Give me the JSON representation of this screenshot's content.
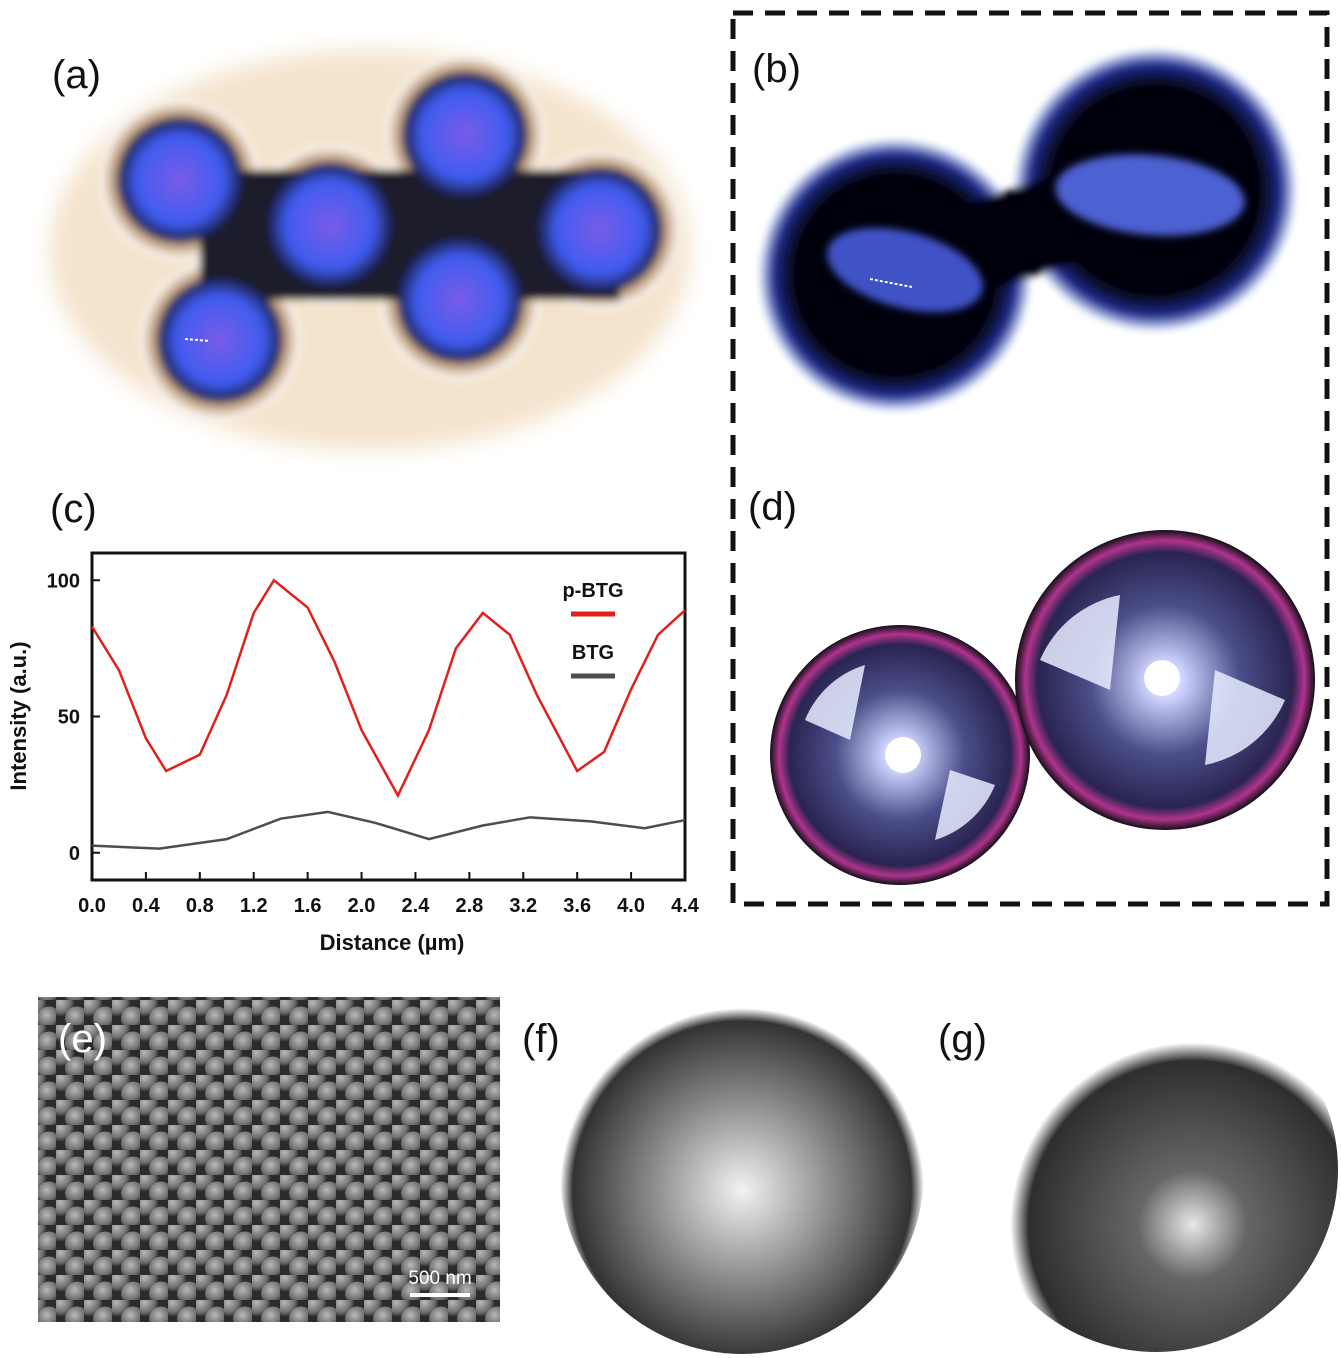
{
  "panels": {
    "a": "(a)",
    "b": "(b)",
    "c": "(c)",
    "d": "(d)",
    "e": "(e)",
    "f": "(f)",
    "g": "(g)"
  },
  "scale_bar": "500 nm",
  "chart_data": {
    "type": "line",
    "x_label": "Distance (µm)",
    "y_label": "Intensity (a.u.)",
    "xlim": [
      0,
      4.4
    ],
    "ylim": [
      -10,
      110
    ],
    "xticks": [
      {
        "value": 0,
        "label": "0.0"
      },
      0.4,
      0.8,
      1.2,
      1.6,
      {
        "value": 2,
        "label": "2.0"
      },
      2.4,
      2.8,
      3.2,
      3.6,
      {
        "value": 4,
        "label": "4.0"
      },
      4.4
    ],
    "yticks": [
      0,
      50,
      100
    ],
    "series": [
      {
        "name": "p-BTG",
        "color": "#e0201b",
        "x": [
          0,
          0.2,
          0.4,
          0.55,
          0.8,
          1.0,
          1.2,
          1.35,
          1.6,
          1.8,
          2.0,
          2.27,
          2.5,
          2.7,
          2.9,
          3.1,
          3.3,
          3.6,
          3.8,
          4.0,
          4.2,
          4.4
        ],
        "values": [
          83,
          67,
          42,
          30,
          36,
          58,
          88,
          100,
          90,
          70,
          45,
          21,
          45,
          75,
          88,
          80,
          58,
          30,
          37,
          60,
          80,
          89
        ]
      },
      {
        "name": "BTG",
        "color": "#4d4d4d",
        "x": [
          0,
          0.5,
          1.0,
          1.4,
          1.75,
          2.1,
          2.5,
          2.9,
          3.25,
          3.7,
          4.1,
          4.4
        ],
        "values": [
          2.6,
          1.5,
          5,
          12.5,
          15,
          11,
          5,
          10,
          13,
          11.5,
          9,
          12
        ]
      }
    ]
  }
}
